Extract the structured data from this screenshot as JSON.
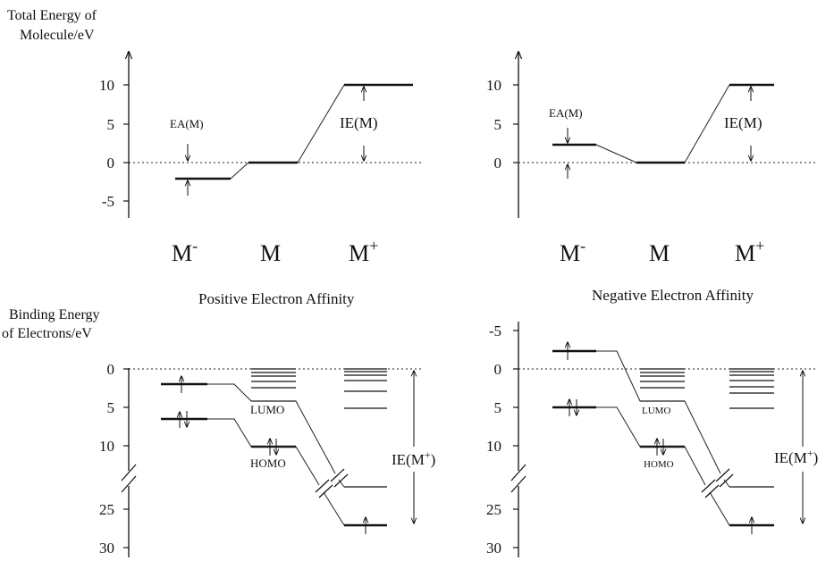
{
  "top": {
    "ylabel_line1": "Total Energy of",
    "ylabel_line2": "Molecule/eV",
    "ticks": [
      "10",
      "5",
      "0",
      "-5"
    ],
    "species": [
      {
        "base": "M",
        "sup": "-"
      },
      {
        "base": "M",
        "sup": ""
      },
      {
        "base": "M",
        "sup": "+"
      }
    ],
    "left": {
      "ea_label": "EA(M)",
      "ie_label": "IE(M)",
      "levels": {
        "M-": -2,
        "M": 0,
        "M+": 10
      }
    },
    "right": {
      "ea_label": "EA(M)",
      "ie_label": "IE(M)",
      "levels": {
        "M-": 2.3,
        "M": 0,
        "M+": 10
      }
    }
  },
  "captions": {
    "left": "Positive Electron Affinity",
    "right": "Negative Electron Affinity"
  },
  "bottom": {
    "ylabel_line1": "Binding Energy",
    "ylabel_line2": "of Electrons/eV",
    "left": {
      "ticks": [
        "0",
        "5",
        "10",
        "25",
        "30"
      ],
      "lumo_label": "LUMO",
      "homo_label": "HOMO",
      "ie_label": "IE(M",
      "ie_sup": "+",
      "ie_close": ")"
    },
    "right": {
      "ticks": [
        "-5",
        "0",
        "5",
        "10",
        "25",
        "30"
      ],
      "lumo_label": "LUMO",
      "homo_label": "HOMO",
      "ie_label": "IE(M",
      "ie_sup": "+",
      "ie_close": ")"
    }
  }
}
